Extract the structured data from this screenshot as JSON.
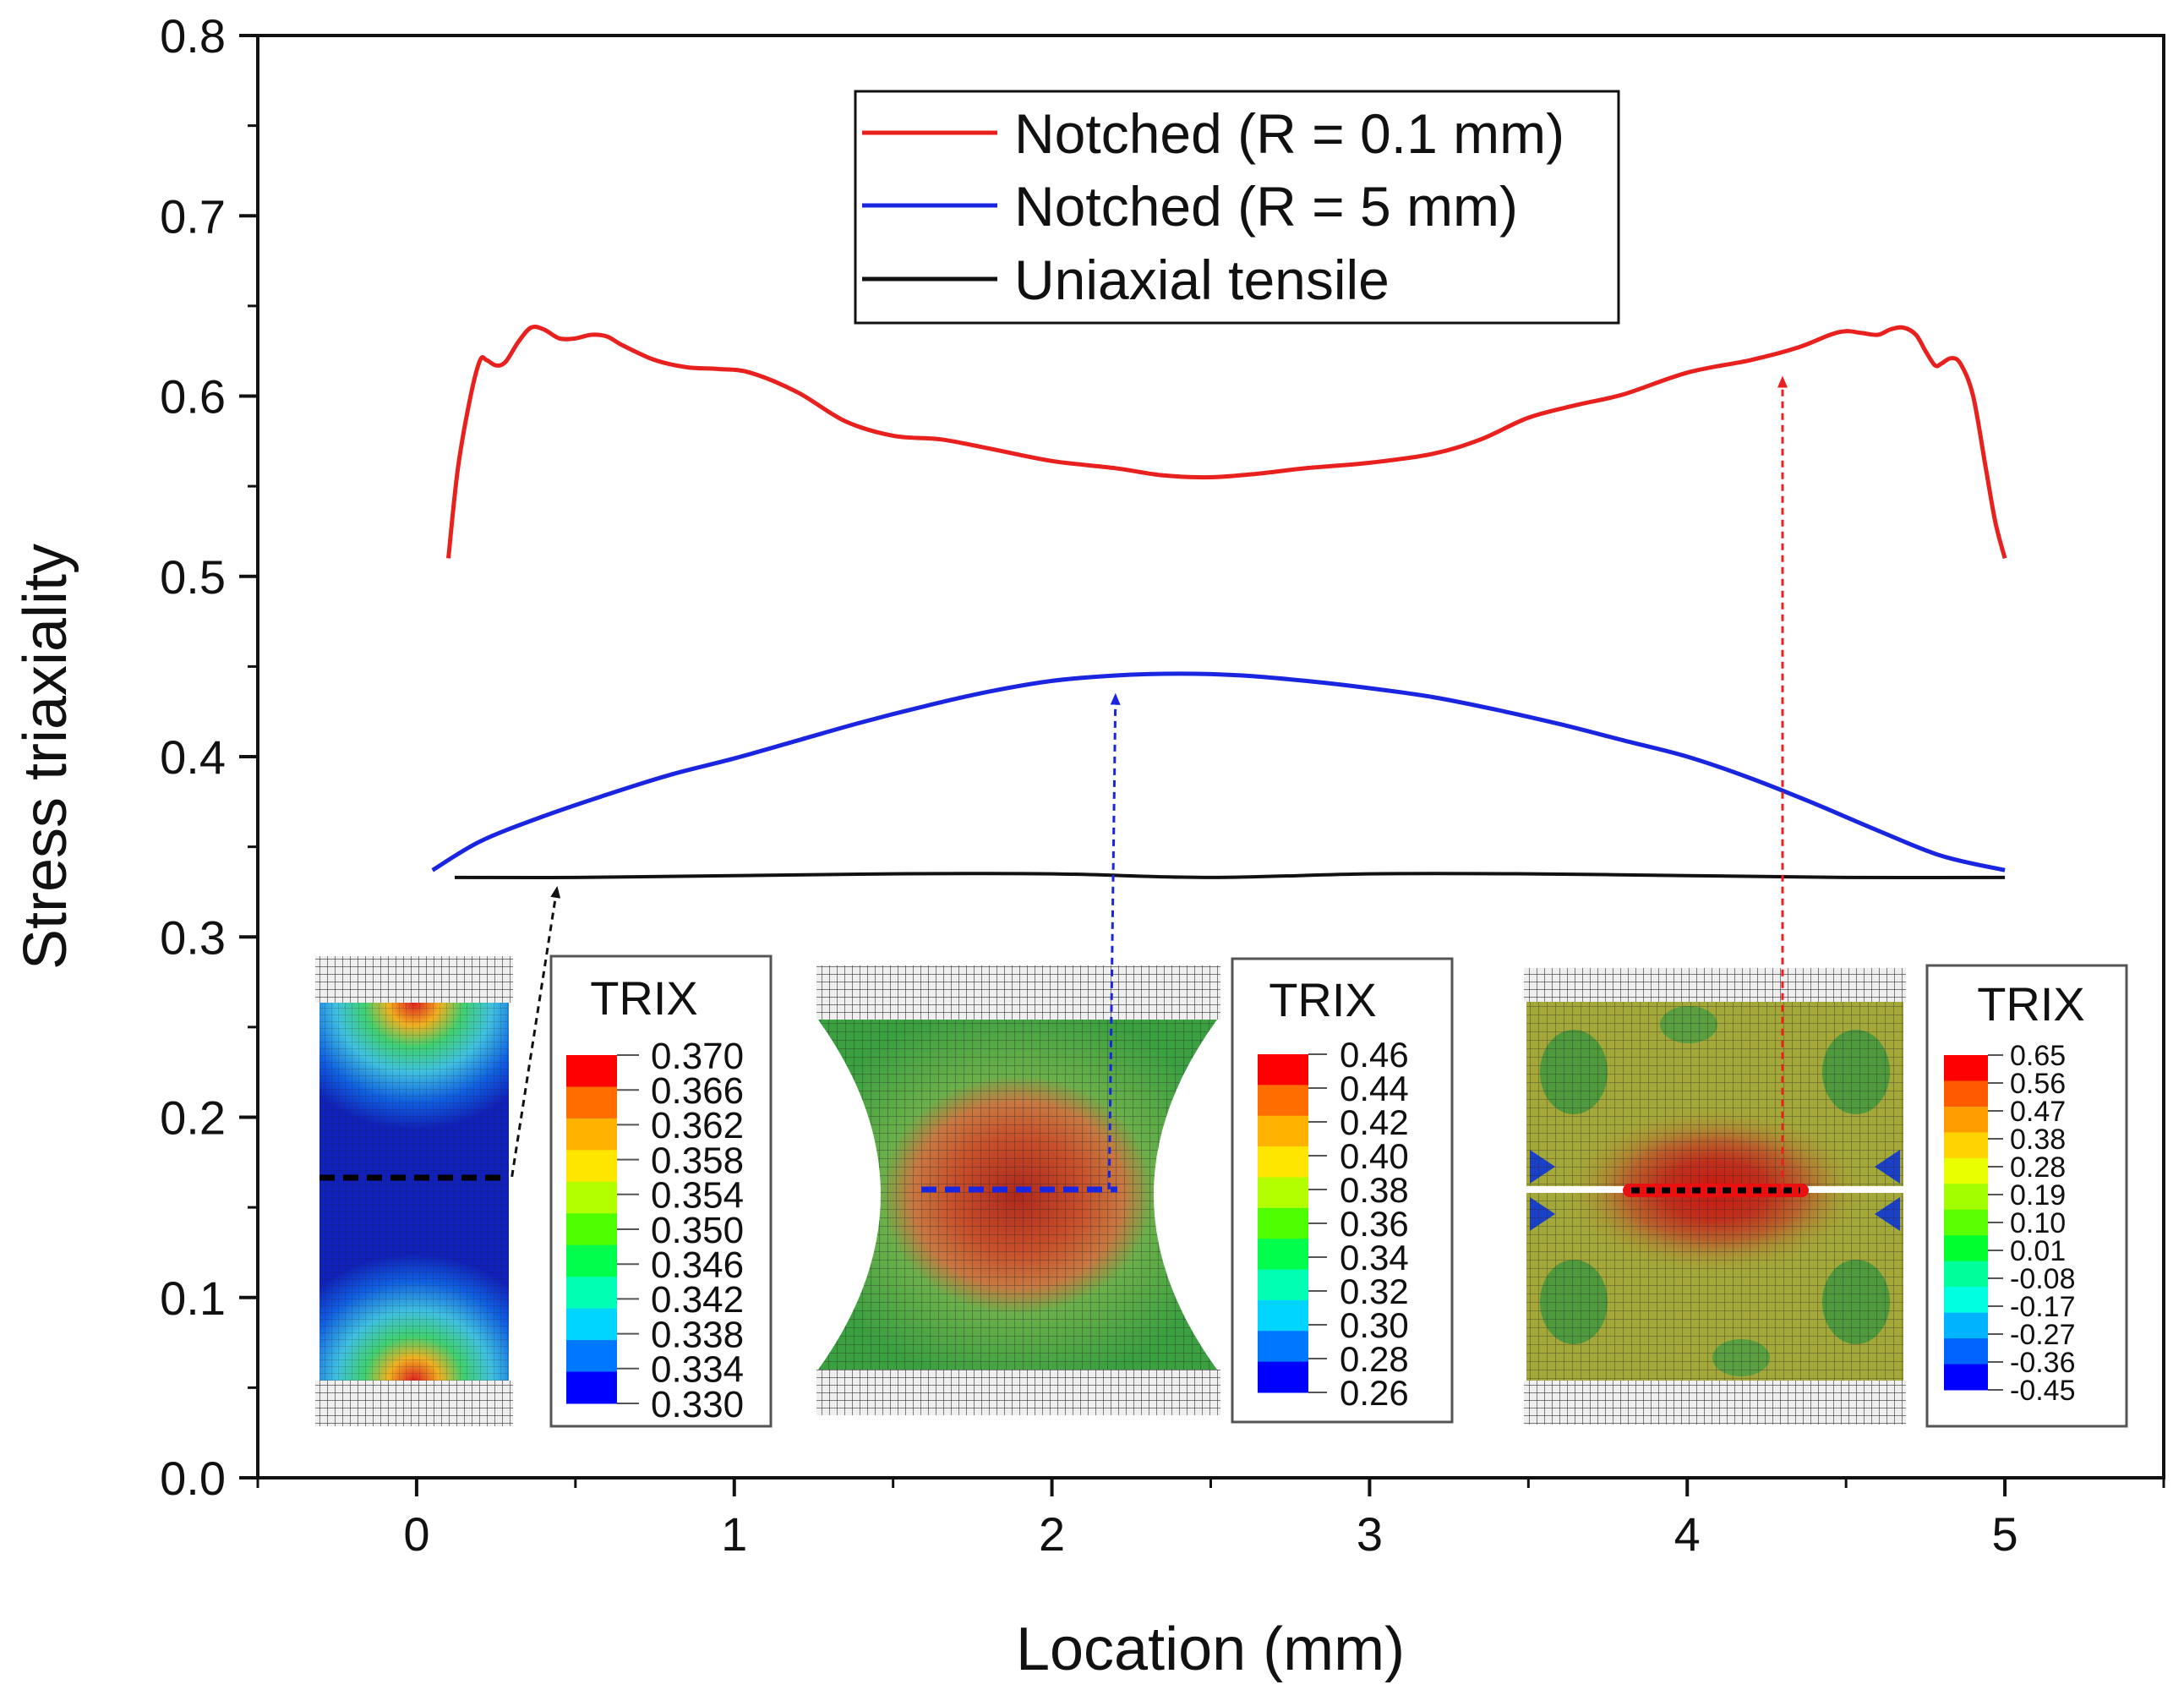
{
  "chart_data": {
    "type": "line",
    "xlabel": "Location (mm)",
    "ylabel": "Stress triaxiality",
    "xlim": [
      -0.5,
      5.5
    ],
    "ylim": [
      0.0,
      0.8
    ],
    "xticks": [
      0,
      1,
      2,
      3,
      4,
      5
    ],
    "yticks": [
      0.0,
      0.1,
      0.2,
      0.3,
      0.4,
      0.5,
      0.6,
      0.7,
      0.8
    ],
    "xtick_labels": [
      "0",
      "1",
      "2",
      "3",
      "4",
      "5"
    ],
    "ytick_labels": [
      "0.0",
      "0.1",
      "0.2",
      "0.3",
      "0.4",
      "0.5",
      "0.6",
      "0.7",
      "0.8"
    ],
    "legend_position": "top-center",
    "series": [
      {
        "name": "Notched (R = 0.1 mm)",
        "color": "#e8201e",
        "x": [
          0.1,
          0.13,
          0.17,
          0.2,
          0.22,
          0.25,
          0.28,
          0.32,
          0.36,
          0.4,
          0.45,
          0.5,
          0.55,
          0.6,
          0.65,
          0.75,
          0.85,
          0.95,
          1.05,
          1.2,
          1.35,
          1.5,
          1.65,
          1.8,
          2.0,
          2.2,
          2.35,
          2.5,
          2.65,
          2.8,
          3.0,
          3.2,
          3.35,
          3.5,
          3.65,
          3.8,
          4.0,
          4.2,
          4.35,
          4.45,
          4.5,
          4.55,
          4.6,
          4.64,
          4.68,
          4.72,
          4.75,
          4.78,
          4.8,
          4.83,
          4.86,
          4.9,
          4.94,
          4.97,
          5.0
        ],
        "values": [
          0.51,
          0.56,
          0.6,
          0.62,
          0.62,
          0.617,
          0.619,
          0.63,
          0.638,
          0.637,
          0.632,
          0.632,
          0.634,
          0.633,
          0.628,
          0.62,
          0.616,
          0.615,
          0.613,
          0.602,
          0.586,
          0.578,
          0.576,
          0.571,
          0.564,
          0.56,
          0.556,
          0.555,
          0.557,
          0.56,
          0.563,
          0.568,
          0.576,
          0.588,
          0.595,
          0.601,
          0.613,
          0.62,
          0.627,
          0.634,
          0.636,
          0.635,
          0.634,
          0.637,
          0.638,
          0.634,
          0.625,
          0.617,
          0.618,
          0.621,
          0.618,
          0.6,
          0.56,
          0.53,
          0.51
        ]
      },
      {
        "name": "Notched (R = 5 mm)",
        "color": "#1a25e0",
        "x": [
          0.05,
          0.2,
          0.4,
          0.6,
          0.8,
          1.0,
          1.2,
          1.4,
          1.6,
          1.8,
          2.0,
          2.2,
          2.4,
          2.6,
          2.8,
          3.0,
          3.2,
          3.4,
          3.6,
          3.8,
          4.0,
          4.2,
          4.4,
          4.6,
          4.8,
          5.0
        ],
        "values": [
          0.337,
          0.353,
          0.367,
          0.379,
          0.39,
          0.399,
          0.409,
          0.419,
          0.428,
          0.436,
          0.442,
          0.445,
          0.446,
          0.445,
          0.442,
          0.438,
          0.433,
          0.426,
          0.418,
          0.409,
          0.4,
          0.388,
          0.374,
          0.359,
          0.345,
          0.337
        ]
      },
      {
        "name": "Uniaxial tensile",
        "color": "#111111",
        "x": [
          0.12,
          0.5,
          1.0,
          1.5,
          2.0,
          2.5,
          3.0,
          3.5,
          4.0,
          4.5,
          5.0
        ],
        "values": [
          0.333,
          0.333,
          0.334,
          0.335,
          0.335,
          0.333,
          0.335,
          0.335,
          0.334,
          0.333,
          0.333
        ]
      }
    ],
    "annotations": [
      {
        "name": "uniaxial-arrow",
        "color": "#111111",
        "from": [
          0.3,
          0.167
        ],
        "to": [
          0.44,
          0.325
        ]
      },
      {
        "name": "r5-arrow",
        "color": "#1a25e0",
        "from": [
          2.18,
          0.16
        ],
        "to": [
          2.2,
          0.432
        ]
      },
      {
        "name": "r01-arrow",
        "color": "#e8201e",
        "from": [
          4.3,
          0.16
        ],
        "to": [
          4.3,
          0.608
        ]
      }
    ]
  },
  "insets": [
    {
      "name": "uniaxial-inset",
      "colorbar_title": "TRIX",
      "colorbar_labels": [
        "0.370",
        "0.366",
        "0.362",
        "0.358",
        "0.354",
        "0.350",
        "0.346",
        "0.342",
        "0.338",
        "0.334",
        "0.330"
      ],
      "colors": [
        "#ff0000",
        "#ff6d00",
        "#ffb300",
        "#ffe600",
        "#b3ff00",
        "#4dff00",
        "#00ff4d",
        "#00ffb3",
        "#00d5ff",
        "#0077ff",
        "#0000ff"
      ]
    },
    {
      "name": "r5-inset",
      "colorbar_title": "TRIX",
      "colorbar_labels": [
        "0.46",
        "0.44",
        "0.42",
        "0.40",
        "0.38",
        "0.36",
        "0.34",
        "0.32",
        "0.30",
        "0.28",
        "0.26"
      ],
      "colors": [
        "#ff0000",
        "#ff6d00",
        "#ffb300",
        "#ffe600",
        "#b3ff00",
        "#4dff00",
        "#00ff4d",
        "#00ffb3",
        "#00d5ff",
        "#0077ff",
        "#0000ff"
      ]
    },
    {
      "name": "r01-inset",
      "colorbar_title": "TRIX",
      "colorbar_labels": [
        "0.65",
        "0.56",
        "0.47",
        "0.38",
        "0.28",
        "0.19",
        "0.10",
        "0.01",
        "-0.08",
        "-0.17",
        "-0.27",
        "-0.36",
        "-0.45"
      ],
      "colors": [
        "#ff0000",
        "#ff5a00",
        "#ff9c00",
        "#ffd200",
        "#e9ff00",
        "#a3ff00",
        "#5cff00",
        "#00ff2e",
        "#00ff9a",
        "#00ffe0",
        "#00b3ff",
        "#0063ff",
        "#0000ff"
      ]
    }
  ]
}
